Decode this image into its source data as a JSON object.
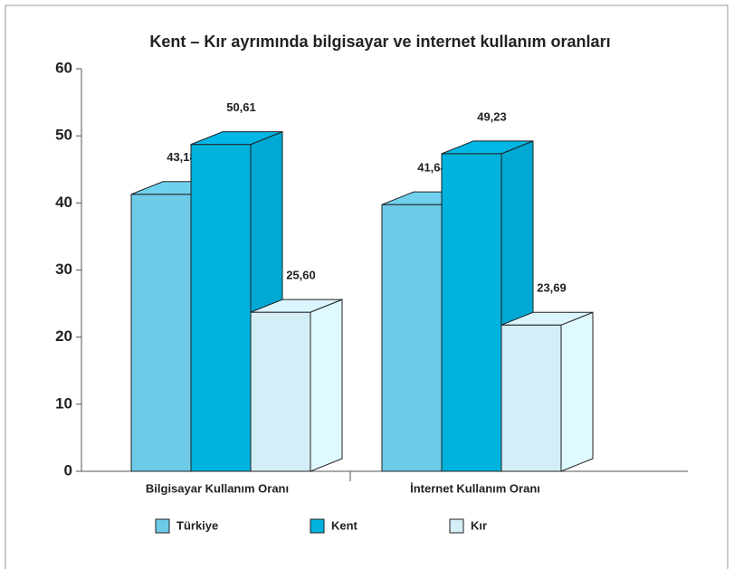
{
  "chart_data": {
    "type": "bar3d",
    "title": "Kent – Kır ayrımında bilgisayar ve internet kullanım oranları",
    "categories": [
      "Bilgisayar Kullanım Oranı",
      "İnternet Kullanım Oranı"
    ],
    "series": [
      {
        "name": "Türkiye",
        "color": "#6dcbe8",
        "values": [
          43.18,
          41.64
        ],
        "value_labels": [
          "43,18",
          "41,64"
        ]
      },
      {
        "name": "Kent",
        "color": "#00b2de",
        "values": [
          50.61,
          49.23
        ],
        "value_labels": [
          "50,61",
          "49,23"
        ]
      },
      {
        "name": "Kır",
        "color": "#d4eef7",
        "values": [
          25.6,
          23.69
        ],
        "value_labels": [
          "25,60",
          "23,69"
        ]
      }
    ],
    "ylim": [
      0,
      60
    ],
    "yticks": [
      0,
      10,
      20,
      30,
      40,
      50,
      60
    ]
  }
}
